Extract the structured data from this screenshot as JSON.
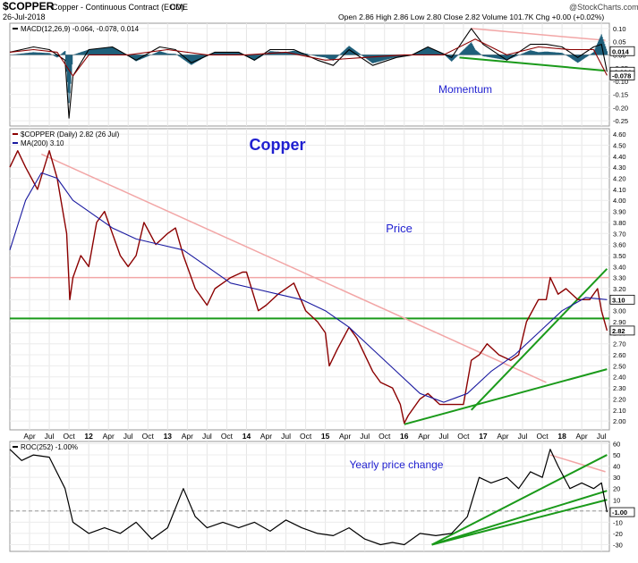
{
  "header": {
    "symbol": "$COPPER",
    "description": "Copper - Continuous Contract (EOD)",
    "exchange": "CME",
    "date": "26-Jul-2018",
    "ohlc": "Open 2.86  High 2.86  Low 2.80  Close 2.82  Volume 101.7K  Chg +0.00 (+0.02%)",
    "watermark": "@StockCharts.com"
  },
  "colors": {
    "price": "#8b0000",
    "ma": "#1a1aa0",
    "trend_green": "#1a9a1a",
    "trend_pink": "#f2a6a6",
    "annotation": "#1f1fd0",
    "macd_fill": "#1f5f7a"
  },
  "chart_data": [
    {
      "type": "line",
      "panel": "momentum",
      "legend": "MACD(12,26,9) -0.064, -0.078, 0.014",
      "annotation": "Momentum",
      "y_ticks": [
        "0.10",
        "0.05",
        "0.00",
        "-0.05",
        "-0.10",
        "-0.15",
        "-0.20",
        "-0.25"
      ],
      "y_tick_values": [
        0.1,
        0.05,
        0.0,
        -0.05,
        -0.1,
        -0.15,
        -0.2,
        -0.25
      ],
      "ylim": [
        -0.27,
        0.12
      ],
      "last_labels": [
        "0.014",
        "-0.064",
        "-0.078"
      ],
      "series": [
        {
          "name": "MACD",
          "values": [
            [
              2011.0,
              0.01
            ],
            [
              2011.3,
              0.03
            ],
            [
              2011.5,
              0.02
            ],
            [
              2011.7,
              -0.02
            ],
            [
              2011.75,
              -0.24
            ],
            [
              2011.8,
              -0.08
            ],
            [
              2012.0,
              0.02
            ],
            [
              2012.3,
              0.03
            ],
            [
              2012.6,
              -0.02
            ],
            [
              2012.9,
              0.03
            ],
            [
              2013.1,
              0.02
            ],
            [
              2013.3,
              -0.03
            ],
            [
              2013.6,
              0.01
            ],
            [
              2013.9,
              0.01
            ],
            [
              2014.1,
              -0.02
            ],
            [
              2014.3,
              0.02
            ],
            [
              2014.6,
              0.02
            ],
            [
              2014.9,
              -0.02
            ],
            [
              2015.1,
              -0.04
            ],
            [
              2015.3,
              0.02
            ],
            [
              2015.6,
              -0.04
            ],
            [
              2015.9,
              -0.01
            ],
            [
              2016.1,
              0.0
            ],
            [
              2016.3,
              0.03
            ],
            [
              2016.6,
              -0.01
            ],
            [
              2016.85,
              0.1
            ],
            [
              2017.0,
              0.04
            ],
            [
              2017.3,
              -0.02
            ],
            [
              2017.6,
              0.04
            ],
            [
              2017.8,
              0.04
            ],
            [
              2018.0,
              0.03
            ],
            [
              2018.2,
              -0.01
            ],
            [
              2018.4,
              0.03
            ],
            [
              2018.5,
              0.04
            ],
            [
              2018.57,
              -0.064
            ]
          ]
        },
        {
          "name": "Signal",
          "values": [
            [
              2011.0,
              0.01
            ],
            [
              2011.3,
              0.02
            ],
            [
              2011.6,
              0.01
            ],
            [
              2011.8,
              -0.08
            ],
            [
              2012.0,
              0.0
            ],
            [
              2012.5,
              0.0
            ],
            [
              2013.0,
              0.02
            ],
            [
              2013.5,
              0.0
            ],
            [
              2014.0,
              0.0
            ],
            [
              2014.5,
              0.01
            ],
            [
              2015.0,
              -0.02
            ],
            [
              2015.5,
              -0.01
            ],
            [
              2016.0,
              0.0
            ],
            [
              2016.5,
              0.0
            ],
            [
              2016.9,
              0.06
            ],
            [
              2017.3,
              0.0
            ],
            [
              2017.7,
              0.03
            ],
            [
              2018.1,
              0.02
            ],
            [
              2018.4,
              0.02
            ],
            [
              2018.57,
              -0.078
            ]
          ]
        }
      ],
      "trendlines": [
        {
          "color": "pink",
          "from": [
            2016.85,
            0.1
          ],
          "to": [
            2018.55,
            0.055
          ]
        },
        {
          "color": "green",
          "from": [
            2016.7,
            -0.01
          ],
          "to": [
            2018.55,
            -0.06
          ]
        }
      ]
    },
    {
      "type": "line",
      "panel": "price",
      "title": "Copper",
      "legend": [
        "$COPPER (Daily) 2.82 (26 Jul)",
        "MA(200) 3.10"
      ],
      "annotation": "Price",
      "y_ticks": [
        "4.60",
        "4.50",
        "4.40",
        "4.30",
        "4.20",
        "4.10",
        "4.00",
        "3.90",
        "3.80",
        "3.70",
        "3.60",
        "3.50",
        "3.40",
        "3.30",
        "3.20",
        "3.10",
        "3.00",
        "2.90",
        "2.80",
        "2.70",
        "2.60",
        "2.50",
        "2.40",
        "2.30",
        "2.20",
        "2.10",
        "2.00"
      ],
      "y_tick_values": [
        4.6,
        4.5,
        4.4,
        4.3,
        4.2,
        4.1,
        4.0,
        3.9,
        3.8,
        3.7,
        3.6,
        3.5,
        3.4,
        3.3,
        3.2,
        3.1,
        3.0,
        2.9,
        2.8,
        2.7,
        2.6,
        2.5,
        2.4,
        2.3,
        2.2,
        2.1,
        2.0
      ],
      "ylim": [
        1.92,
        4.65
      ],
      "last_labels": [
        "3.10",
        "2.82"
      ],
      "horizontal_lines": [
        {
          "color": "pink",
          "y": 3.3
        },
        {
          "color": "green",
          "y": 2.93
        }
      ],
      "series": [
        {
          "name": "$COPPER",
          "values": [
            [
              2011.0,
              4.3
            ],
            [
              2011.1,
              4.45
            ],
            [
              2011.2,
              4.3
            ],
            [
              2011.35,
              4.1
            ],
            [
              2011.5,
              4.45
            ],
            [
              2011.6,
              4.2
            ],
            [
              2011.72,
              3.7
            ],
            [
              2011.76,
              3.1
            ],
            [
              2011.8,
              3.3
            ],
            [
              2011.9,
              3.5
            ],
            [
              2012.0,
              3.4
            ],
            [
              2012.1,
              3.8
            ],
            [
              2012.2,
              3.9
            ],
            [
              2012.3,
              3.7
            ],
            [
              2012.4,
              3.5
            ],
            [
              2012.5,
              3.4
            ],
            [
              2012.6,
              3.5
            ],
            [
              2012.7,
              3.8
            ],
            [
              2012.85,
              3.6
            ],
            [
              2013.0,
              3.7
            ],
            [
              2013.1,
              3.75
            ],
            [
              2013.2,
              3.5
            ],
            [
              2013.35,
              3.2
            ],
            [
              2013.5,
              3.05
            ],
            [
              2013.6,
              3.2
            ],
            [
              2013.8,
              3.3
            ],
            [
              2013.95,
              3.35
            ],
            [
              2014.0,
              3.35
            ],
            [
              2014.15,
              3.0
            ],
            [
              2014.25,
              3.05
            ],
            [
              2014.4,
              3.15
            ],
            [
              2014.6,
              3.25
            ],
            [
              2014.75,
              3.0
            ],
            [
              2014.9,
              2.9
            ],
            [
              2015.0,
              2.8
            ],
            [
              2015.05,
              2.5
            ],
            [
              2015.15,
              2.65
            ],
            [
              2015.3,
              2.85
            ],
            [
              2015.4,
              2.75
            ],
            [
              2015.5,
              2.6
            ],
            [
              2015.6,
              2.45
            ],
            [
              2015.7,
              2.35
            ],
            [
              2015.85,
              2.3
            ],
            [
              2015.95,
              2.15
            ],
            [
              2016.0,
              1.98
            ],
            [
              2016.05,
              2.05
            ],
            [
              2016.2,
              2.2
            ],
            [
              2016.3,
              2.25
            ],
            [
              2016.45,
              2.15
            ],
            [
              2016.6,
              2.15
            ],
            [
              2016.75,
              2.15
            ],
            [
              2016.85,
              2.55
            ],
            [
              2016.95,
              2.6
            ],
            [
              2017.05,
              2.7
            ],
            [
              2017.2,
              2.6
            ],
            [
              2017.35,
              2.55
            ],
            [
              2017.45,
              2.6
            ],
            [
              2017.55,
              2.9
            ],
            [
              2017.7,
              3.1
            ],
            [
              2017.8,
              3.1
            ],
            [
              2017.85,
              3.3
            ],
            [
              2017.95,
              3.15
            ],
            [
              2018.05,
              3.2
            ],
            [
              2018.2,
              3.1
            ],
            [
              2018.35,
              3.1
            ],
            [
              2018.45,
              3.2
            ],
            [
              2018.5,
              3.0
            ],
            [
              2018.57,
              2.82
            ]
          ]
        },
        {
          "name": "MA(200)",
          "values": [
            [
              2011.0,
              3.55
            ],
            [
              2011.2,
              4.0
            ],
            [
              2011.4,
              4.25
            ],
            [
              2011.6,
              4.2
            ],
            [
              2011.8,
              4.0
            ],
            [
              2012.0,
              3.9
            ],
            [
              2012.3,
              3.75
            ],
            [
              2012.6,
              3.65
            ],
            [
              2012.9,
              3.6
            ],
            [
              2013.2,
              3.55
            ],
            [
              2013.5,
              3.4
            ],
            [
              2013.8,
              3.25
            ],
            [
              2014.1,
              3.2
            ],
            [
              2014.4,
              3.15
            ],
            [
              2014.7,
              3.1
            ],
            [
              2015.0,
              3.0
            ],
            [
              2015.3,
              2.85
            ],
            [
              2015.6,
              2.65
            ],
            [
              2015.9,
              2.45
            ],
            [
              2016.2,
              2.25
            ],
            [
              2016.5,
              2.17
            ],
            [
              2016.8,
              2.25
            ],
            [
              2017.1,
              2.45
            ],
            [
              2017.4,
              2.6
            ],
            [
              2017.7,
              2.8
            ],
            [
              2018.0,
              3.0
            ],
            [
              2018.3,
              3.12
            ],
            [
              2018.57,
              3.1
            ]
          ]
        }
      ],
      "trendlines": [
        {
          "color": "pink",
          "from": [
            2011.4,
            4.42
          ],
          "to": [
            2017.8,
            2.35
          ]
        },
        {
          "color": "green",
          "from": [
            2016.0,
            1.97
          ],
          "to": [
            2018.57,
            2.47
          ]
        },
        {
          "color": "green",
          "from": [
            2016.85,
            2.1
          ],
          "to": [
            2018.57,
            3.38
          ]
        }
      ]
    },
    {
      "type": "line",
      "panel": "roc",
      "legend": "ROC(252) -1.00%",
      "annotation": "Yearly price change",
      "y_ticks": [
        "60",
        "50",
        "40",
        "30",
        "20",
        "10",
        "0",
        "-10",
        "-20",
        "-30"
      ],
      "y_tick_values": [
        60,
        50,
        40,
        30,
        20,
        10,
        0,
        -10,
        -20,
        -30
      ],
      "ylim": [
        -36,
        62
      ],
      "last_labels": [
        "-1.00"
      ],
      "series": [
        {
          "name": "ROC(252)",
          "values": [
            [
              2011.0,
              55
            ],
            [
              2011.15,
              45
            ],
            [
              2011.3,
              50
            ],
            [
              2011.5,
              48
            ],
            [
              2011.7,
              20
            ],
            [
              2011.8,
              -10
            ],
            [
              2012.0,
              -20
            ],
            [
              2012.2,
              -15
            ],
            [
              2012.4,
              -20
            ],
            [
              2012.6,
              -10
            ],
            [
              2012.8,
              -25
            ],
            [
              2013.0,
              -15
            ],
            [
              2013.2,
              20
            ],
            [
              2013.35,
              -5
            ],
            [
              2013.5,
              -15
            ],
            [
              2013.7,
              -10
            ],
            [
              2013.9,
              -15
            ],
            [
              2014.1,
              -10
            ],
            [
              2014.3,
              -18
            ],
            [
              2014.5,
              -8
            ],
            [
              2014.7,
              -15
            ],
            [
              2014.9,
              -20
            ],
            [
              2015.1,
              -22
            ],
            [
              2015.3,
              -15
            ],
            [
              2015.5,
              -25
            ],
            [
              2015.7,
              -30
            ],
            [
              2015.85,
              -28
            ],
            [
              2016.0,
              -30
            ],
            [
              2016.2,
              -20
            ],
            [
              2016.4,
              -22
            ],
            [
              2016.6,
              -20
            ],
            [
              2016.8,
              -5
            ],
            [
              2016.95,
              30
            ],
            [
              2017.1,
              25
            ],
            [
              2017.3,
              30
            ],
            [
              2017.45,
              20
            ],
            [
              2017.6,
              35
            ],
            [
              2017.75,
              30
            ],
            [
              2017.85,
              55
            ],
            [
              2017.95,
              40
            ],
            [
              2018.1,
              20
            ],
            [
              2018.25,
              25
            ],
            [
              2018.4,
              20
            ],
            [
              2018.5,
              25
            ],
            [
              2018.57,
              -1.0
            ]
          ]
        }
      ],
      "trendlines": [
        {
          "color": "pink",
          "from": [
            2017.85,
            50
          ],
          "to": [
            2018.55,
            35
          ]
        },
        {
          "color": "green",
          "from": [
            2016.35,
            -30
          ],
          "to": [
            2018.57,
            50
          ]
        },
        {
          "color": "green",
          "from": [
            2016.35,
            -30
          ],
          "to": [
            2018.57,
            18
          ]
        },
        {
          "color": "green",
          "from": [
            2016.35,
            -30
          ],
          "to": [
            2018.57,
            10
          ]
        }
      ]
    }
  ],
  "x_axis": {
    "labels": [
      "Apr",
      "Jul",
      "Oct",
      "12",
      "Apr",
      "Jul",
      "Oct",
      "13",
      "Apr",
      "Jul",
      "Oct",
      "14",
      "Apr",
      "Jul",
      "Oct",
      "15",
      "Apr",
      "Jul",
      "Oct",
      "16",
      "Apr",
      "Jul",
      "Oct",
      "17",
      "Apr",
      "Jul",
      "Oct",
      "18",
      "Apr",
      "Jul"
    ],
    "values": [
      2011.25,
      2011.5,
      2011.75,
      2012.0,
      2012.25,
      2012.5,
      2012.75,
      2013.0,
      2013.25,
      2013.5,
      2013.75,
      2014.0,
      2014.25,
      2014.5,
      2014.75,
      2015.0,
      2015.25,
      2015.5,
      2015.75,
      2016.0,
      2016.25,
      2016.5,
      2016.75,
      2017.0,
      2017.25,
      2017.5,
      2017.75,
      2018.0,
      2018.25,
      2018.5
    ],
    "range": [
      2011.0,
      2018.6
    ]
  }
}
